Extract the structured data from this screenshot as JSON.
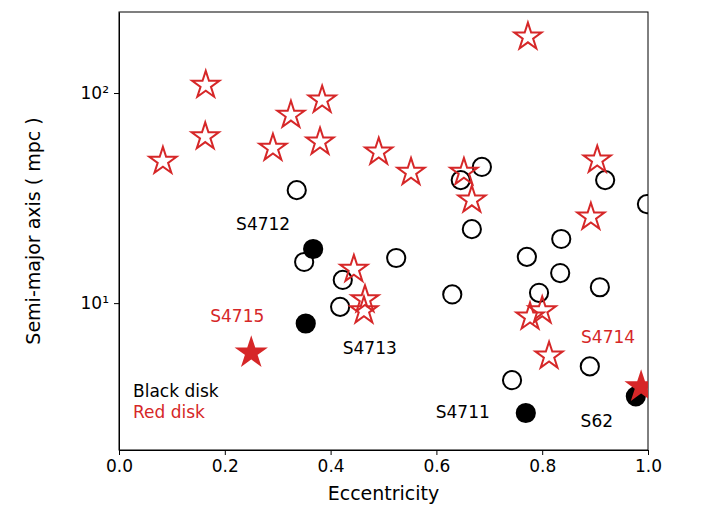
{
  "chart_data": {
    "type": "scatter",
    "x_label": "Eccentricity",
    "y_label": "Semi-major axis ( mpc )",
    "log": "y",
    "legend": "lower left",
    "xlim": [
      0,
      1
    ],
    "ylim": [
      2.0,
      243
    ],
    "xticks": [
      {
        "value": 0,
        "label": "0.0"
      },
      {
        "value": 0.2,
        "label": "0.2"
      },
      {
        "value": 0.4,
        "label": "0.4"
      },
      {
        "value": 0.6,
        "label": "0.6"
      },
      {
        "value": 0.8,
        "label": "0.8"
      },
      {
        "value": 1,
        "label": "1.0"
      }
    ],
    "yticks": [
      {
        "value": 10,
        "label": "10¹"
      },
      {
        "value": 100,
        "label": "10²"
      }
    ],
    "series": [
      {
        "name": "Black disk",
        "color": "#000000",
        "marker": "open-circle",
        "x": [
          0.336,
          0.35,
          0.423,
          0.418,
          0.524,
          0.63,
          0.646,
          0.686,
          0.667,
          0.771,
          0.794,
          0.836,
          0.834,
          0.909,
          0.919,
          0.998,
          0.743,
          0.89
        ],
        "values": [
          34.5,
          15.7,
          12.9,
          9.6,
          16.4,
          11.0,
          38.5,
          44.5,
          22.5,
          16.6,
          11.2,
          20.2,
          13.9,
          11.9,
          38.5,
          29.6,
          4.3,
          5.0
        ]
      },
      {
        "name": "Red disk",
        "color": "#d62728",
        "marker": "open-star",
        "x": [
          0.083,
          0.164,
          0.163,
          0.291,
          0.325,
          0.384,
          0.38,
          0.491,
          0.552,
          0.773,
          0.652,
          0.667,
          0.904,
          0.892,
          0.444,
          0.465,
          0.463,
          0.777,
          0.8,
          0.813
        ],
        "values": [
          47.4,
          109,
          62,
          54.7,
          78.5,
          92.7,
          58.5,
          52.4,
          42,
          185,
          42,
          31,
          48,
          25.7,
          14.5,
          10.4,
          9.2,
          8.6,
          9.2,
          5.6
        ]
      },
      {
        "color": "#000000",
        "marker": "circle",
        "x": [
          0.367,
          0.353,
          0.769,
          0.977
        ],
        "values": [
          18.1,
          8.0,
          3.0,
          3.6
        ],
        "labels": [
          "S4712",
          "S4713",
          "S4711",
          "S62"
        ]
      },
      {
        "color": "#d62728",
        "marker": "star",
        "x": [
          0.25,
          0.987
        ],
        "values": [
          5.8,
          4.0
        ],
        "labels": [
          "S4715",
          "S4714"
        ]
      }
    ]
  }
}
